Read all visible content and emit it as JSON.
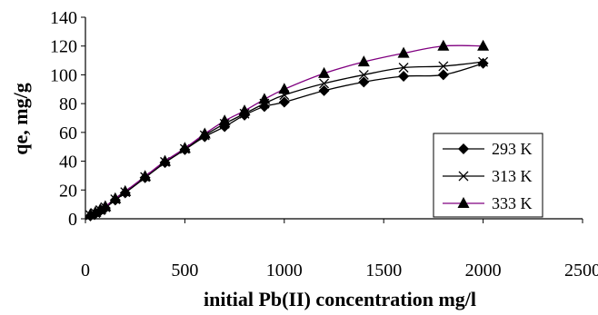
{
  "chart_data": {
    "type": "line",
    "xlabel": "initial Pb(II) concentration mg/l",
    "ylabel": "qe, mg/g",
    "xlim": [
      0,
      2500
    ],
    "ylim": [
      0,
      140
    ],
    "x_ticks": [
      "0",
      "500",
      "1000",
      "1500",
      "2000",
      "2500"
    ],
    "y_ticks": [
      "0",
      "20",
      "40",
      "60",
      "80",
      "100",
      "120",
      "140"
    ],
    "grid": false,
    "legend_position": "right",
    "series": [
      {
        "name": "293 K",
        "marker": "diamond",
        "color": "#000000",
        "x": [
          25,
          50,
          75,
          100,
          150,
          200,
          300,
          400,
          500,
          600,
          700,
          800,
          900,
          1000,
          1200,
          1400,
          1600,
          1800,
          2000
        ],
        "y": [
          2,
          3.5,
          5.5,
          7.5,
          13,
          18,
          28.5,
          39,
          48,
          57,
          64,
          72,
          78,
          81,
          89,
          95,
          99,
          100,
          108
        ]
      },
      {
        "name": "313 K",
        "marker": "x",
        "color": "#000000",
        "x": [
          25,
          50,
          75,
          100,
          150,
          200,
          300,
          400,
          500,
          600,
          700,
          800,
          900,
          1000,
          1200,
          1400,
          1600,
          1800,
          2000
        ],
        "y": [
          2.5,
          4,
          6,
          8,
          13.5,
          18.5,
          29,
          39.5,
          48.5,
          58,
          66,
          73,
          80,
          86,
          94,
          100,
          105,
          106,
          109
        ]
      },
      {
        "name": "333 K",
        "marker": "triangle",
        "color": "#800080",
        "x": [
          25,
          50,
          75,
          100,
          150,
          200,
          300,
          400,
          500,
          600,
          700,
          800,
          900,
          1000,
          1200,
          1400,
          1600,
          1800,
          2000
        ],
        "y": [
          3,
          4.5,
          6.5,
          8.5,
          14,
          19,
          29.5,
          40,
          49,
          59,
          68,
          75,
          83,
          90,
          101,
          109,
          115,
          120,
          120
        ]
      }
    ]
  }
}
